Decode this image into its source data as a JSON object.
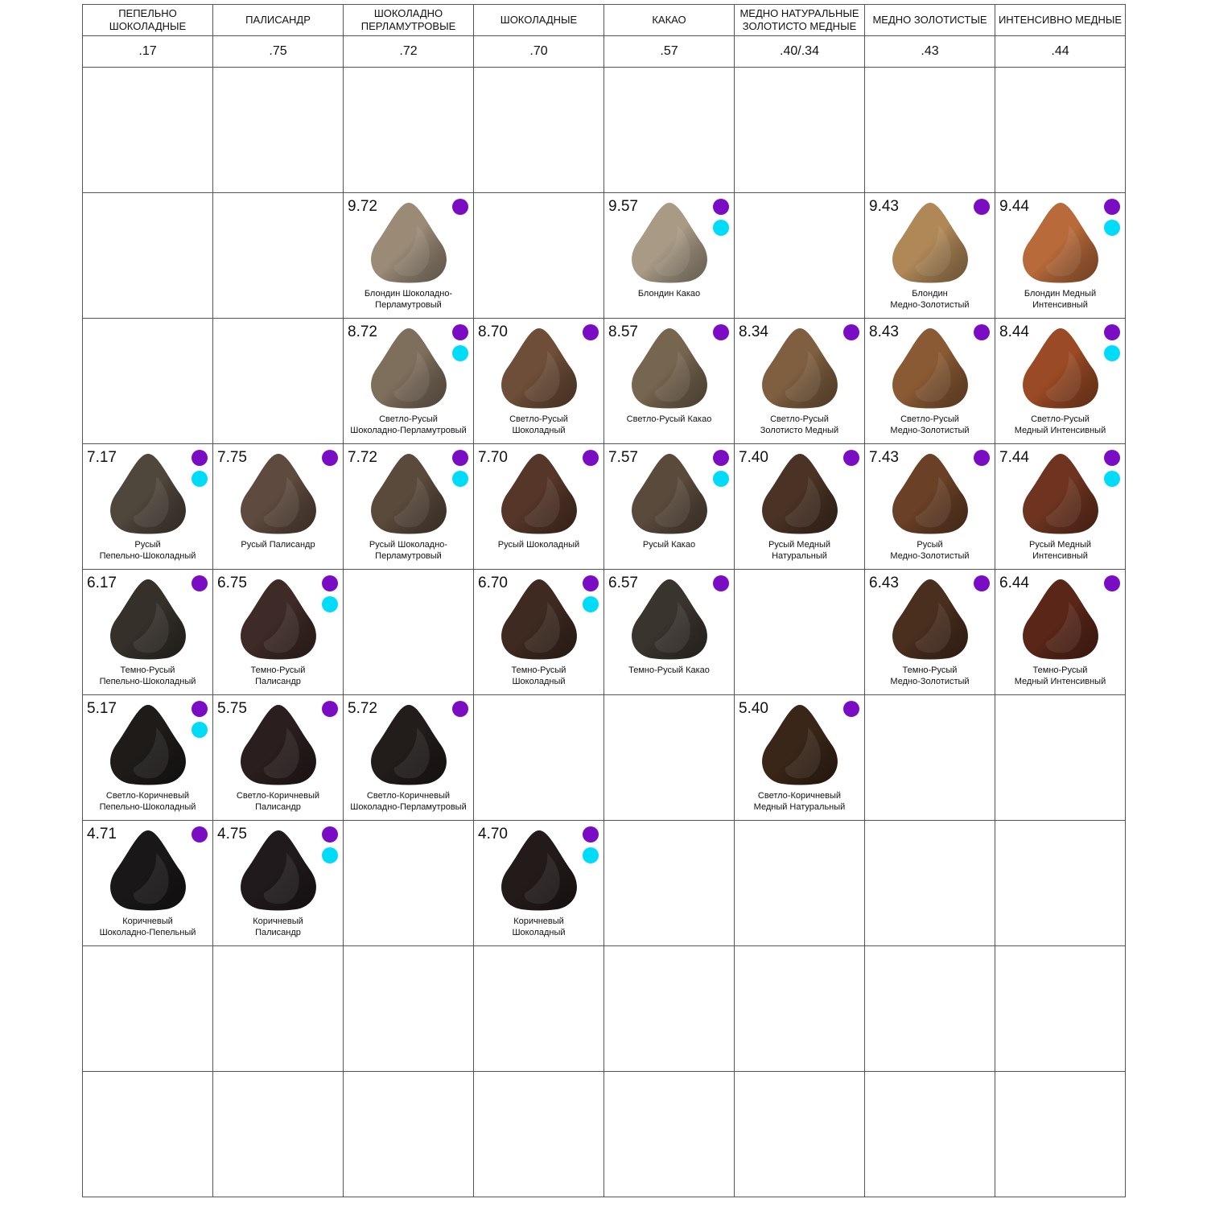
{
  "headers": [
    "ПЕПЕЛЬНО ШОКОЛАДНЫЕ",
    "ПАЛИСАНДР",
    "ШОКОЛАДНО ПЕРЛАМУТРОВЫЕ",
    "ШОКОЛАДНЫЕ",
    "КАКАО",
    "МЕДНО НАТУРАЛЬНЫЕ ЗОЛОТИСТО МЕДНЫЕ",
    "МЕДНО ЗОЛОТИСТЫЕ",
    "ИНТЕНСИВНО МЕДНЫЕ"
  ],
  "codes": [
    ".17",
    ".75",
    ".72",
    ".70",
    ".57",
    ".40/.34",
    ".43",
    ".44"
  ],
  "dot_colors": {
    "purple": "#7a0cc4",
    "cyan": "#00dcf7"
  },
  "rows": [
    [
      null,
      null,
      null,
      null,
      null,
      null,
      null,
      null
    ],
    [
      null,
      null,
      {
        "code": "9.72",
        "name": [
          "Блондин Шоколадно-",
          "Перламутровый"
        ],
        "color": "#9a8a76",
        "dots": [
          "purple"
        ]
      },
      null,
      {
        "code": "9.57",
        "name": [
          "Блондин Какао"
        ],
        "color": "#a89a85",
        "dots": [
          "purple",
          "cyan"
        ]
      },
      null,
      {
        "code": "9.43",
        "name": [
          "Блондин",
          "Медно-Золотистый"
        ],
        "color": "#b08858",
        "dots": [
          "purple"
        ]
      },
      {
        "code": "9.44",
        "name": [
          "Блондин Медный",
          "Интенсивный"
        ],
        "color": "#b86a3a",
        "dots": [
          "purple",
          "cyan"
        ]
      }
    ],
    [
      null,
      null,
      {
        "code": "8.72",
        "name": [
          "Светло-Русый",
          "Шоколадно-Перламутровый"
        ],
        "color": "#7e6e5c",
        "dots": [
          "purple",
          "cyan"
        ]
      },
      {
        "code": "8.70",
        "name": [
          "Светло-Русый",
          "Шоколадный"
        ],
        "color": "#6e4e38",
        "dots": [
          "purple"
        ]
      },
      {
        "code": "8.57",
        "name": [
          "Светло-Русый Какао"
        ],
        "color": "#76654f",
        "dots": [
          "purple"
        ]
      },
      {
        "code": "8.34",
        "name": [
          "Светло-Русый",
          "Золотисто Медный"
        ],
        "color": "#7f5f40",
        "dots": [
          "purple"
        ]
      },
      {
        "code": "8.43",
        "name": [
          "Светло-Русый",
          "Медно-Золотистый"
        ],
        "color": "#8a5a34",
        "dots": [
          "purple"
        ]
      },
      {
        "code": "8.44",
        "name": [
          "Светло-Русый",
          "Медный Интенсивный"
        ],
        "color": "#9a4a24",
        "dots": [
          "purple",
          "cyan"
        ]
      }
    ],
    [
      {
        "code": "7.17",
        "name": [
          "Русый",
          "Пепельно-Шоколадный"
        ],
        "color": "#4f463c",
        "dots": [
          "purple",
          "cyan"
        ]
      },
      {
        "code": "7.75",
        "name": [
          "Русый Палисандр"
        ],
        "color": "#5e4a3e",
        "dots": [
          "purple"
        ]
      },
      {
        "code": "7.72",
        "name": [
          "Русый Шоколадно-",
          "Перламутровый"
        ],
        "color": "#5a4a3c",
        "dots": [
          "purple",
          "cyan"
        ]
      },
      {
        "code": "7.70",
        "name": [
          "Русый Шоколадный"
        ],
        "color": "#553628",
        "dots": [
          "purple"
        ]
      },
      {
        "code": "7.57",
        "name": [
          "Русый Какао"
        ],
        "color": "#5a4a3c",
        "dots": [
          "purple",
          "cyan"
        ]
      },
      {
        "code": "7.40",
        "name": [
          "Русый Медный",
          "Натуральный"
        ],
        "color": "#4a3224",
        "dots": [
          "purple"
        ]
      },
      {
        "code": "7.43",
        "name": [
          "Русый",
          "Медно-Золотистый"
        ],
        "color": "#6a4026",
        "dots": [
          "purple"
        ]
      },
      {
        "code": "7.44",
        "name": [
          "Русый Медный",
          "Интенсивный"
        ],
        "color": "#6e3420",
        "dots": [
          "purple",
          "cyan"
        ]
      }
    ],
    [
      {
        "code": "6.17",
        "name": [
          "Темно-Русый",
          "Пепельно-Шоколадный"
        ],
        "color": "#35302a",
        "dots": [
          "purple"
        ]
      },
      {
        "code": "6.75",
        "name": [
          "Темно-Русый",
          "Палисандр"
        ],
        "color": "#3e2a26",
        "dots": [
          "purple",
          "cyan"
        ]
      },
      null,
      {
        "code": "6.70",
        "name": [
          "Темно-Русый",
          "Шоколадный"
        ],
        "color": "#3e2a20",
        "dots": [
          "purple",
          "cyan"
        ]
      },
      {
        "code": "6.57",
        "name": [
          "Темно-Русый Какао"
        ],
        "color": "#3a342e",
        "dots": [
          "purple"
        ]
      },
      null,
      {
        "code": "6.43",
        "name": [
          "Темно-Русый",
          "Медно-Золотистый"
        ],
        "color": "#4a2e1e",
        "dots": [
          "purple"
        ]
      },
      {
        "code": "6.44",
        "name": [
          "Темно-Русый",
          "Медный Интенсивный"
        ],
        "color": "#5a2618",
        "dots": [
          "purple"
        ]
      }
    ],
    [
      {
        "code": "5.17",
        "name": [
          "Светло-Коричневый",
          "Пепельно-Шоколадный"
        ],
        "color": "#1e1b19",
        "dots": [
          "purple",
          "cyan"
        ]
      },
      {
        "code": "5.75",
        "name": [
          "Светло-Коричневый",
          "Палисандр"
        ],
        "color": "#2a1e1e",
        "dots": [
          "purple"
        ]
      },
      {
        "code": "5.72",
        "name": [
          "Светло-Коричневый",
          "Шоколадно-Перламутровый"
        ],
        "color": "#221c1a",
        "dots": [
          "purple"
        ]
      },
      null,
      null,
      {
        "code": "5.40",
        "name": [
          "Светло-Коричневый",
          "Медный Натуральный"
        ],
        "color": "#3a2618",
        "dots": [
          "purple"
        ]
      },
      null,
      null
    ],
    [
      {
        "code": "4.71",
        "name": [
          "Коричневый",
          "Шоколадно-Пепельный"
        ],
        "color": "#1a1718",
        "dots": [
          "purple"
        ]
      },
      {
        "code": "4.75",
        "name": [
          "Коричневый",
          "Палисандр"
        ],
        "color": "#211a1c",
        "dots": [
          "purple",
          "cyan"
        ]
      },
      null,
      {
        "code": "4.70",
        "name": [
          "Коричневый",
          "Шоколадный"
        ],
        "color": "#231b1a",
        "dots": [
          "purple",
          "cyan"
        ]
      },
      null,
      null,
      null,
      null
    ],
    [
      null,
      null,
      null,
      null,
      null,
      null,
      null,
      null
    ],
    [
      null,
      null,
      null,
      null,
      null,
      null,
      null,
      null
    ]
  ]
}
